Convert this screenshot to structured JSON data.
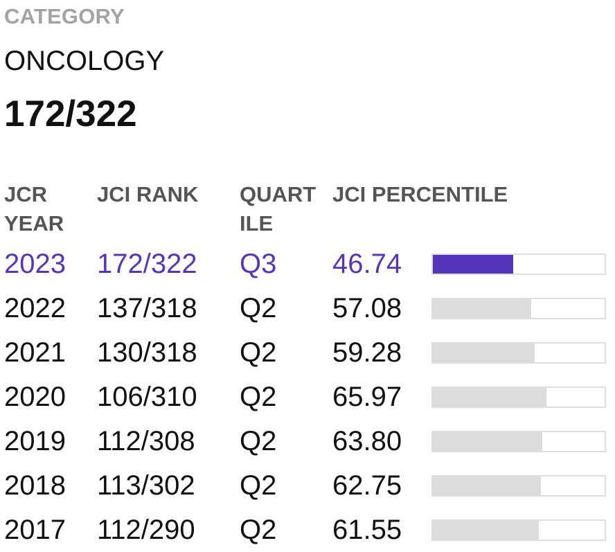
{
  "category": {
    "label": "CATEGORY",
    "name": "ONCOLOGY",
    "rank": "172/322"
  },
  "table": {
    "headers": {
      "year": "JCR YEAR",
      "rank": "JCI RANK",
      "quartile": "QUART ILE",
      "percentile": "JCI PERCENTILE"
    },
    "rows": [
      {
        "year": "2023",
        "rank": "172/322",
        "quartile": "Q3",
        "percentile": "46.74",
        "pct_value": 46.74,
        "current": true
      },
      {
        "year": "2022",
        "rank": "137/318",
        "quartile": "Q2",
        "percentile": "57.08",
        "pct_value": 57.08,
        "current": false
      },
      {
        "year": "2021",
        "rank": "130/318",
        "quartile": "Q2",
        "percentile": "59.28",
        "pct_value": 59.28,
        "current": false
      },
      {
        "year": "2020",
        "rank": "106/310",
        "quartile": "Q2",
        "percentile": "65.97",
        "pct_value": 65.97,
        "current": false
      },
      {
        "year": "2019",
        "rank": "112/308",
        "quartile": "Q2",
        "percentile": "63.80",
        "pct_value": 63.8,
        "current": false
      },
      {
        "year": "2018",
        "rank": "113/302",
        "quartile": "Q2",
        "percentile": "62.75",
        "pct_value": 62.75,
        "current": false
      },
      {
        "year": "2017",
        "rank": "112/290",
        "quartile": "Q2",
        "percentile": "61.55",
        "pct_value": 61.55,
        "current": false
      }
    ]
  },
  "colors": {
    "accent": "#5735bb",
    "muted_label": "#a3a3a3",
    "bar_inactive": "#dcdcdc"
  }
}
